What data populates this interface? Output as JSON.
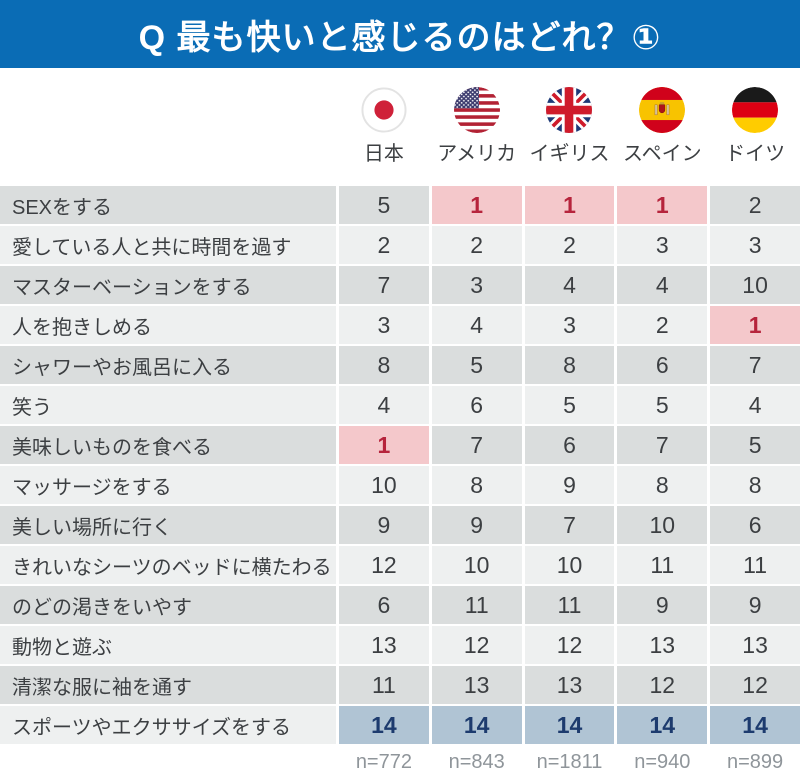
{
  "title_bar": {
    "title": "Q 最も快いと感じるのはどれ？①",
    "bg_color": "#0a6cb5",
    "text_color": "#ffffff"
  },
  "table": {
    "columns": [
      {
        "label": "日本",
        "flag": "japan-flag-icon",
        "sample_size": "n=772"
      },
      {
        "label": "アメリカ",
        "flag": "usa-flag-icon",
        "sample_size": "n=843"
      },
      {
        "label": "イギリス",
        "flag": "uk-flag-icon",
        "sample_size": "n=1811"
      },
      {
        "label": "スペイン",
        "flag": "spain-flag-icon",
        "sample_size": "n=940"
      },
      {
        "label": "ドイツ",
        "flag": "germany-flag-icon",
        "sample_size": "n=899"
      }
    ],
    "rows": [
      {
        "label": "SEXをする",
        "values": [
          5,
          1,
          1,
          1,
          2
        ]
      },
      {
        "label": "愛している人と共に時間を過す",
        "values": [
          2,
          2,
          2,
          3,
          3
        ]
      },
      {
        "label": "マスターベーションをする",
        "values": [
          7,
          3,
          4,
          4,
          10
        ]
      },
      {
        "label": "人を抱きしめる",
        "values": [
          3,
          4,
          3,
          2,
          1
        ]
      },
      {
        "label": "シャワーやお風呂に入る",
        "values": [
          8,
          5,
          8,
          6,
          7
        ]
      },
      {
        "label": "笑う",
        "values": [
          4,
          6,
          5,
          5,
          4
        ]
      },
      {
        "label": "美味しいものを食べる",
        "values": [
          1,
          7,
          6,
          7,
          5
        ]
      },
      {
        "label": "マッサージをする",
        "values": [
          10,
          8,
          9,
          8,
          8
        ]
      },
      {
        "label": "美しい場所に行く",
        "values": [
          9,
          9,
          7,
          10,
          6
        ]
      },
      {
        "label": "きれいなシーツのベッドに横たわる",
        "values": [
          12,
          10,
          10,
          11,
          11
        ]
      },
      {
        "label": "のどの渇きをいやす",
        "values": [
          6,
          11,
          11,
          9,
          9
        ]
      },
      {
        "label": "動物と遊ぶ",
        "values": [
          13,
          12,
          12,
          13,
          13
        ]
      },
      {
        "label": "清潔な服に袖を通す",
        "values": [
          11,
          13,
          13,
          12,
          12
        ]
      },
      {
        "label": "スポーツやエクササイズをする",
        "values": [
          14,
          14,
          14,
          14,
          14
        ]
      }
    ],
    "highlight_rules": {
      "first_rank_value": 1,
      "first_rank_bg": "#f4c8cb",
      "first_rank_text": "#b6243c",
      "last_rank_value": 14,
      "last_rank_bg": "#b0c4d4",
      "last_rank_text": "#1d3b6e"
    },
    "row_colors": {
      "odd": "#dadddd",
      "even": "#eef0f0"
    }
  },
  "chart_data": {
    "type": "table",
    "title": "Q 最も快いと感じるのはどれ？①",
    "columns": [
      "日本",
      "アメリカ",
      "イギリス",
      "スペイン",
      "ドイツ"
    ],
    "rows": [
      {
        "label": "SEXをする",
        "ranks": [
          5,
          1,
          1,
          1,
          2
        ]
      },
      {
        "label": "愛している人と共に時間を過す",
        "ranks": [
          2,
          2,
          2,
          3,
          3
        ]
      },
      {
        "label": "マスターベーションをする",
        "ranks": [
          7,
          3,
          4,
          4,
          10
        ]
      },
      {
        "label": "人を抱きしめる",
        "ranks": [
          3,
          4,
          3,
          2,
          1
        ]
      },
      {
        "label": "シャワーやお風呂に入る",
        "ranks": [
          8,
          5,
          8,
          6,
          7
        ]
      },
      {
        "label": "笑う",
        "ranks": [
          4,
          6,
          5,
          5,
          4
        ]
      },
      {
        "label": "美味しいものを食べる",
        "ranks": [
          1,
          7,
          6,
          7,
          5
        ]
      },
      {
        "label": "マッサージをする",
        "ranks": [
          10,
          8,
          9,
          8,
          8
        ]
      },
      {
        "label": "美しい場所に行く",
        "ranks": [
          9,
          9,
          7,
          10,
          6
        ]
      },
      {
        "label": "きれいなシーツのベッドに横たわる",
        "ranks": [
          12,
          10,
          10,
          11,
          11
        ]
      },
      {
        "label": "のどの渇きをいやす",
        "ranks": [
          6,
          11,
          11,
          9,
          9
        ]
      },
      {
        "label": "動物と遊ぶ",
        "ranks": [
          13,
          12,
          12,
          13,
          13
        ]
      },
      {
        "label": "清潔な服に袖を通す",
        "ranks": [
          11,
          13,
          13,
          12,
          12
        ]
      },
      {
        "label": "スポーツやエクササイズをする",
        "ranks": [
          14,
          14,
          14,
          14,
          14
        ]
      }
    ],
    "sample_sizes": [
      772,
      843,
      1811,
      940,
      899
    ],
    "notes": "rank 1 cells highlighted pink/red, rank 14 cells highlighted blue/navy"
  }
}
